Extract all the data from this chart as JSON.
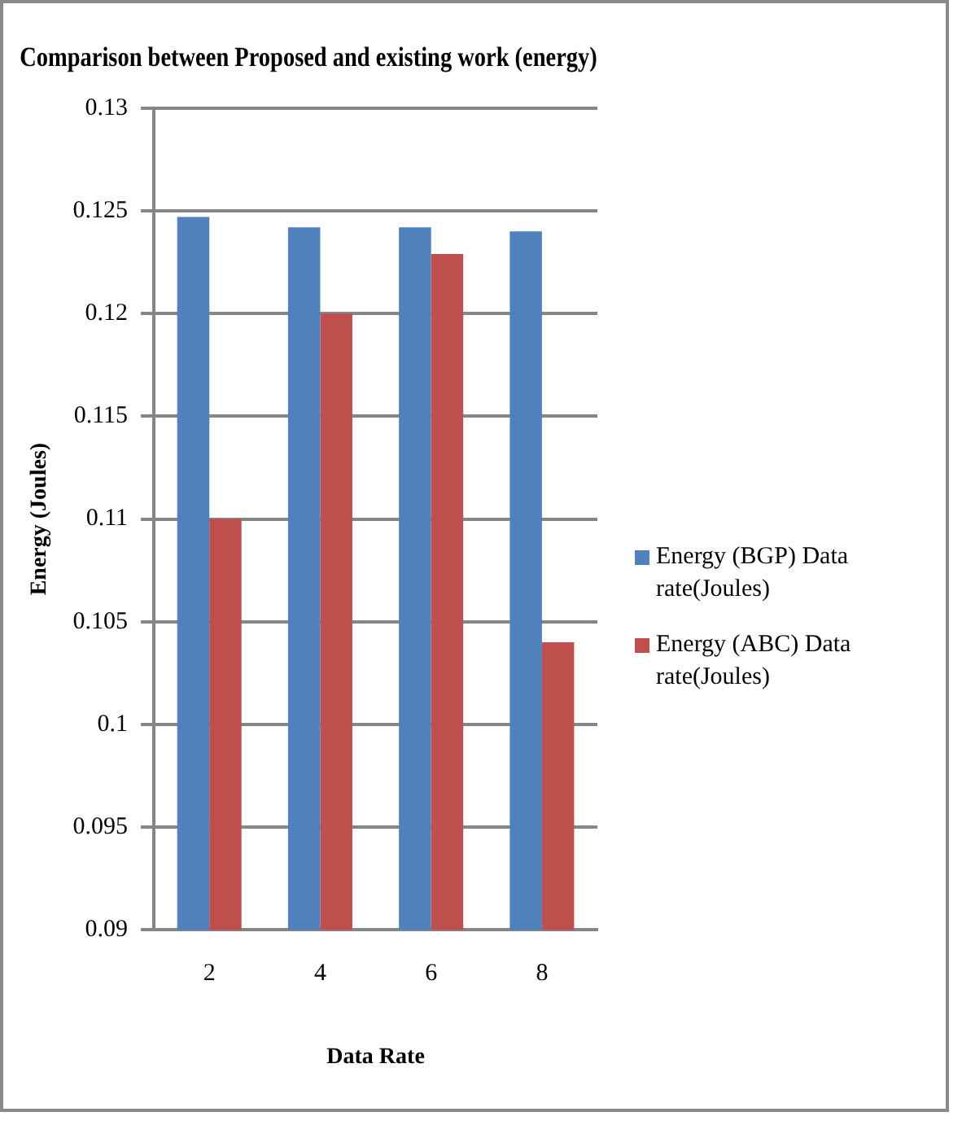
{
  "chart_data": {
    "type": "bar",
    "title": "Comparison between Proposed and existing work (energy)",
    "xlabel": "Data Rate",
    "ylabel": "Energy (Joules)",
    "categories": [
      "2",
      "4",
      "6",
      "8"
    ],
    "series": [
      {
        "name": "Energy (BGP) Data rate(Joules)",
        "color": "#4f81bd",
        "values": [
          0.1247,
          0.1242,
          0.1242,
          0.124
        ]
      },
      {
        "name": "Energy (ABC) Data rate(Joules)",
        "color": "#c0504d",
        "values": [
          0.11,
          0.12,
          0.1229,
          0.104
        ]
      }
    ],
    "ylim": [
      0.09,
      0.13
    ],
    "yticks": [
      0.09,
      0.095,
      0.1,
      0.105,
      0.11,
      0.115,
      0.12,
      0.125,
      0.13
    ],
    "grid": "y",
    "legend": "right"
  }
}
